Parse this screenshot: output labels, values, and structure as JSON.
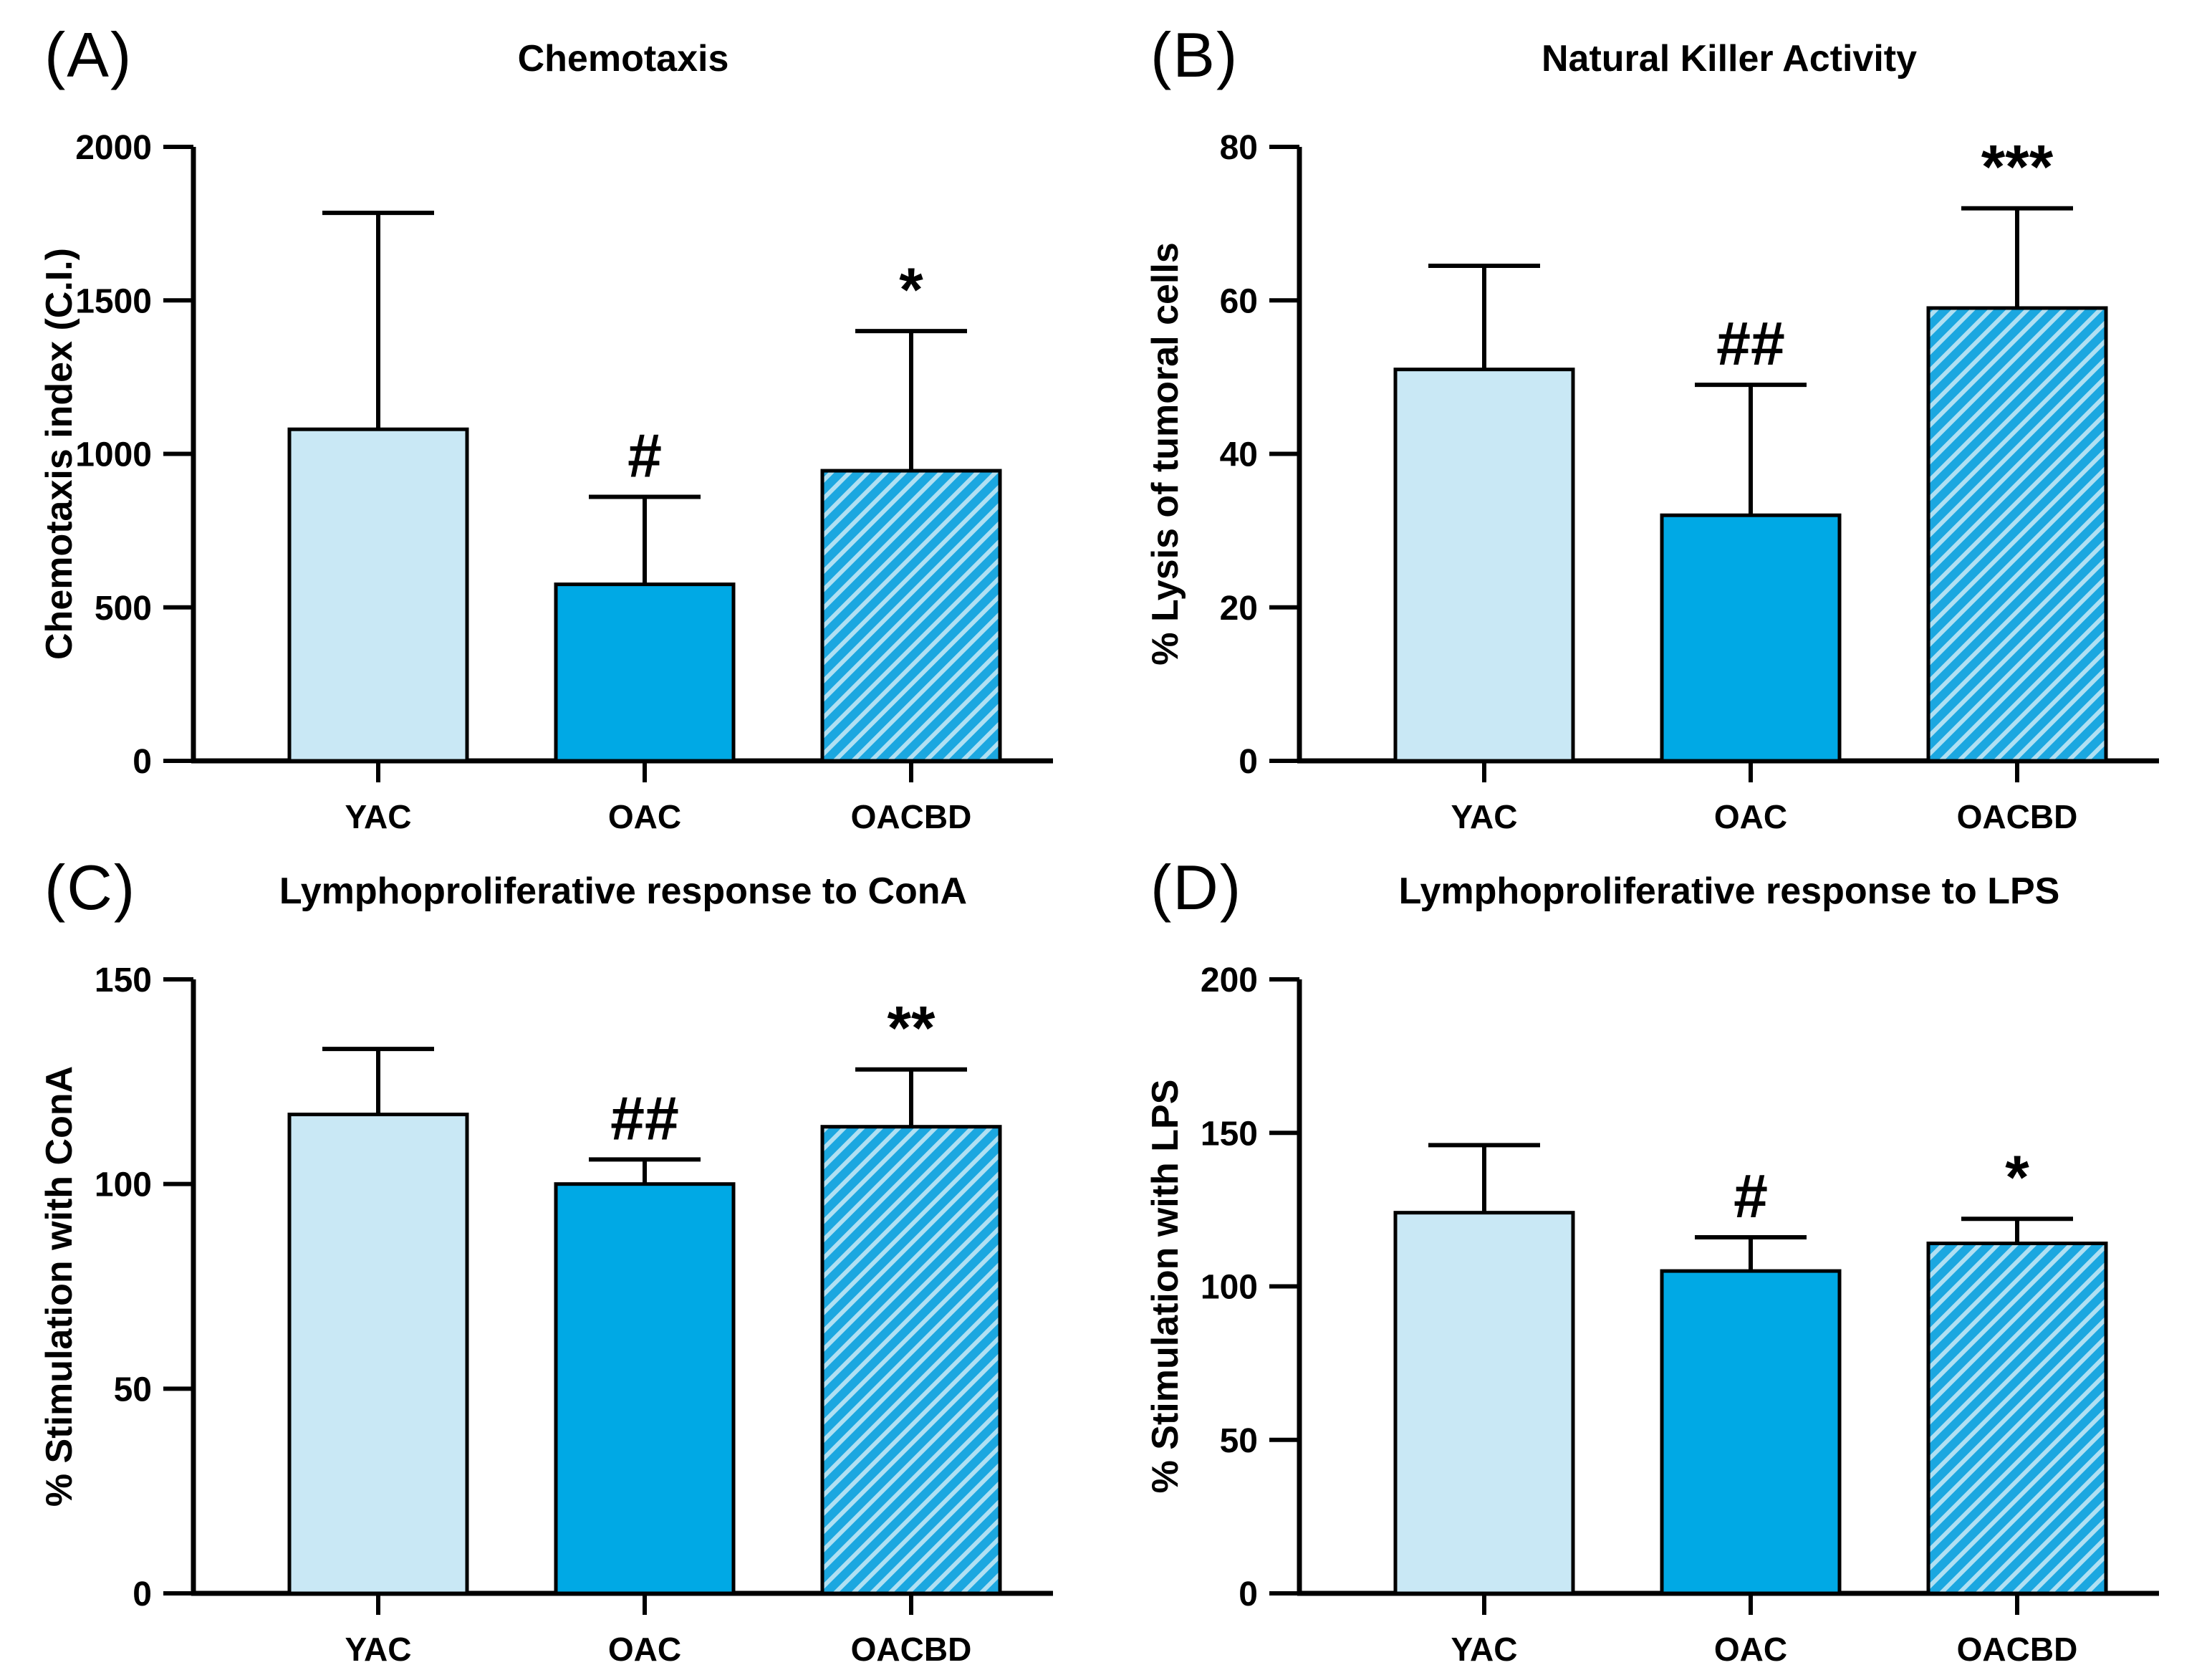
{
  "figure_name": "Immune function bar chart panels",
  "colors": {
    "light_bar_fill": "#c9e8f5",
    "solid_bar_fill": "#00a9e5",
    "hatch_bar_base": "#1ba7e0",
    "hatch_bar_stripe": "#b0e0f3",
    "axis_stroke": "#000000",
    "background": "#ffffff"
  },
  "chart_data": [
    {
      "type": "bar",
      "panel_label": "(A)",
      "title": "Chemotaxis",
      "xlabel": "",
      "ylabel": "Chemotaxis index (C.I.)",
      "categories": [
        "YAC",
        "OAC",
        "OACBD"
      ],
      "values": [
        1080,
        575,
        945
      ],
      "error_plus": [
        705,
        285,
        455
      ],
      "annotations": [
        "",
        "#",
        "*"
      ],
      "ylim": [
        0,
        2000
      ],
      "yticks": [
        0,
        500,
        1000,
        1500,
        2000
      ],
      "bar_styles": [
        "light",
        "solid",
        "hatched"
      ],
      "grid": false,
      "legend": "none"
    },
    {
      "type": "bar",
      "panel_label": "(B)",
      "title": "Natural Killer Activity",
      "xlabel": "",
      "ylabel": "% Lysis of tumoral cells",
      "categories": [
        "YAC",
        "OAC",
        "OACBD"
      ],
      "values": [
        51,
        32,
        59
      ],
      "error_plus": [
        13.5,
        17,
        13
      ],
      "annotations": [
        "",
        "##",
        "***"
      ],
      "ylim": [
        0,
        80
      ],
      "yticks": [
        0,
        20,
        40,
        60,
        80
      ],
      "bar_styles": [
        "light",
        "solid",
        "hatched"
      ],
      "grid": false,
      "legend": "none"
    },
    {
      "type": "bar",
      "panel_label": "(C)",
      "title": "Lymphoproliferative response to ConA",
      "xlabel": "",
      "ylabel": "% Stimulation with ConA",
      "categories": [
        "YAC",
        "OAC",
        "OACBD"
      ],
      "values": [
        117,
        100,
        114
      ],
      "error_plus": [
        16,
        6,
        14
      ],
      "annotations": [
        "",
        "##",
        "**"
      ],
      "ylim": [
        0,
        150
      ],
      "yticks": [
        0,
        50,
        100,
        150
      ],
      "bar_styles": [
        "light",
        "solid",
        "hatched"
      ],
      "grid": false,
      "legend": "none"
    },
    {
      "type": "bar",
      "panel_label": "(D)",
      "title": "Lymphoproliferative response to LPS",
      "xlabel": "",
      "ylabel": "% Stimulation with LPS",
      "categories": [
        "YAC",
        "OAC",
        "OACBD"
      ],
      "values": [
        124,
        105,
        114
      ],
      "error_plus": [
        22,
        11,
        8
      ],
      "annotations": [
        "",
        "#",
        "*"
      ],
      "ylim": [
        0,
        200
      ],
      "yticks": [
        0,
        50,
        100,
        150,
        200
      ],
      "bar_styles": [
        "light",
        "solid",
        "hatched"
      ],
      "grid": false,
      "legend": "none"
    }
  ]
}
